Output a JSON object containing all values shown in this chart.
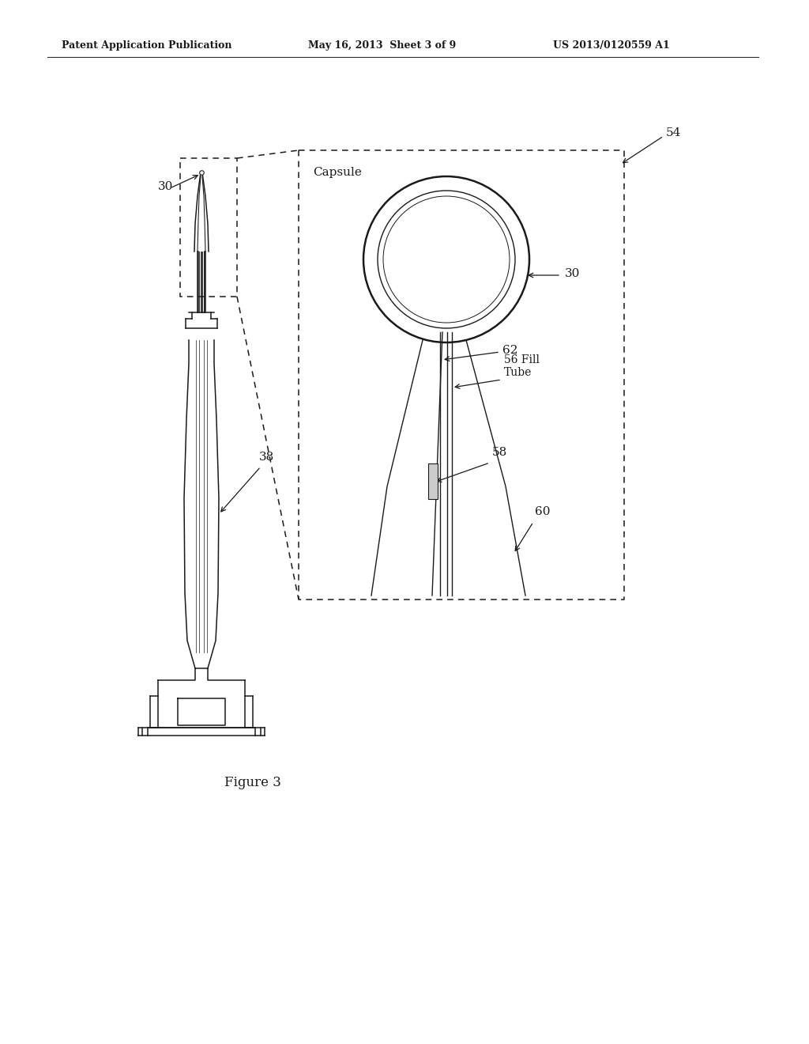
{
  "bg_color": "#ffffff",
  "header_left": "Patent Application Publication",
  "header_mid": "May 16, 2013  Sheet 3 of 9",
  "header_right": "US 2013/0120559 A1",
  "figure_label": "Figure 3",
  "labels": {
    "30_tip": "30",
    "30_circle": "30",
    "38": "38",
    "54": "54",
    "56": "56 Fill\nTube",
    "58": "58",
    "60": "60",
    "62": "62",
    "capsule": "Capsule"
  },
  "color": "#1a1a1a"
}
